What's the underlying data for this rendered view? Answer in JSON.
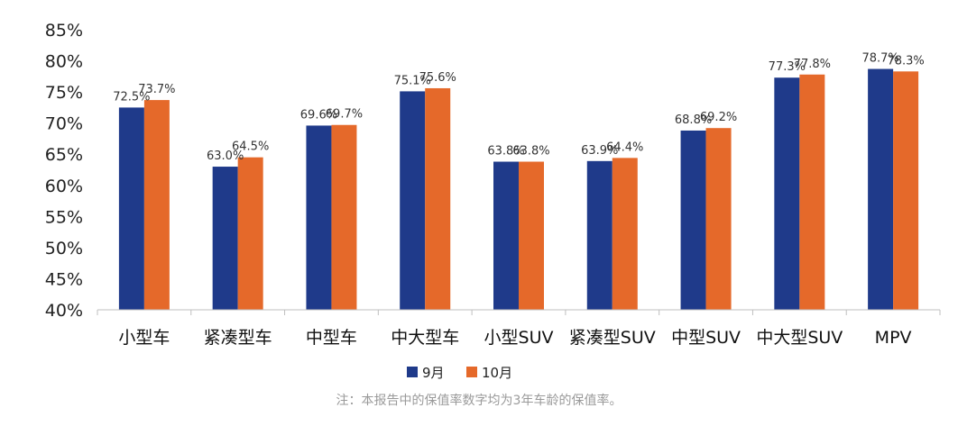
{
  "chart_data": {
    "type": "bar",
    "categories": [
      "小型车",
      "紧凑型车",
      "中型车",
      "中大型车",
      "小型SUV",
      "紧凑型SUV",
      "中型SUV",
      "中大型SUV",
      "MPV"
    ],
    "series": [
      {
        "name": "9月",
        "color": "#1f3a8a",
        "values": [
          72.5,
          63.0,
          69.6,
          75.1,
          63.8,
          63.9,
          68.8,
          77.3,
          78.7
        ],
        "labels": [
          "72.5%",
          "63.0%",
          "69.6%",
          "75.1%",
          "63.8%",
          "63.9%",
          "68.8%",
          "77.3%",
          "78.7%"
        ]
      },
      {
        "name": "10月",
        "color": "#e5692a",
        "values": [
          73.7,
          64.5,
          69.7,
          75.6,
          63.8,
          64.4,
          69.2,
          77.8,
          78.3
        ],
        "labels": [
          "73.7%",
          "64.5%",
          "69.7%",
          "75.6%",
          "63.8%",
          "64.4%",
          "69.2%",
          "77.8%",
          "78.3%"
        ]
      }
    ],
    "ylim": [
      40,
      85
    ],
    "yticks": [
      "85%",
      "80%",
      "75%",
      "70%",
      "65%",
      "60%",
      "55%",
      "50%",
      "45%",
      "40%"
    ],
    "ytick_values": [
      85,
      80,
      75,
      70,
      65,
      60,
      55,
      50,
      45,
      40
    ],
    "grid": false,
    "legend_position": "bottom-center"
  },
  "note": "注：本报告中的保值率数字均为3年车龄的保值率。"
}
